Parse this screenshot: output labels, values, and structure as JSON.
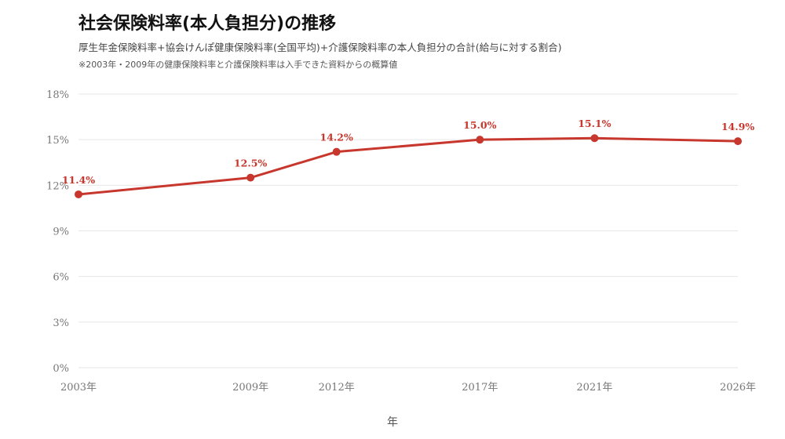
{
  "title": "社会保険料率(本人負担分)の推移",
  "subtitle": "厚生年金保険料率+協会けんぽ健康保険料率(全国平均)+介護保険料率の本人負担分の合計(給与に対する割合)",
  "note": "※2003年・2009年の健康保険料率と介護保険料率は入手できた資料からの概算値",
  "colors": {
    "line": "#c8372d",
    "grid": "#e6e6e6",
    "tick": "#777777"
  },
  "chart_data": {
    "type": "line",
    "title": "社会保険料率(本人負担分)の推移",
    "xlabel": "年",
    "ylabel": "",
    "x": [
      2003,
      2009,
      2012,
      2017,
      2021,
      2026
    ],
    "x_tick_labels": [
      "2003年",
      "2009年",
      "2012年",
      "2017年",
      "2021年",
      "2026年"
    ],
    "series": [
      {
        "values": [
          11.4,
          12.5,
          14.2,
          15.0,
          15.1,
          14.9
        ],
        "labels": [
          "11.4%",
          "12.5%",
          "14.2%",
          "15.0%",
          "15.1%",
          "14.9%"
        ]
      }
    ],
    "ylim": [
      0,
      18
    ],
    "y_ticks": [
      0,
      3,
      6,
      9,
      12,
      15,
      18
    ],
    "y_tick_labels": [
      "0%",
      "3%",
      "6%",
      "9%",
      "12%",
      "15%",
      "18%"
    ],
    "grid": true,
    "legend": "none"
  }
}
